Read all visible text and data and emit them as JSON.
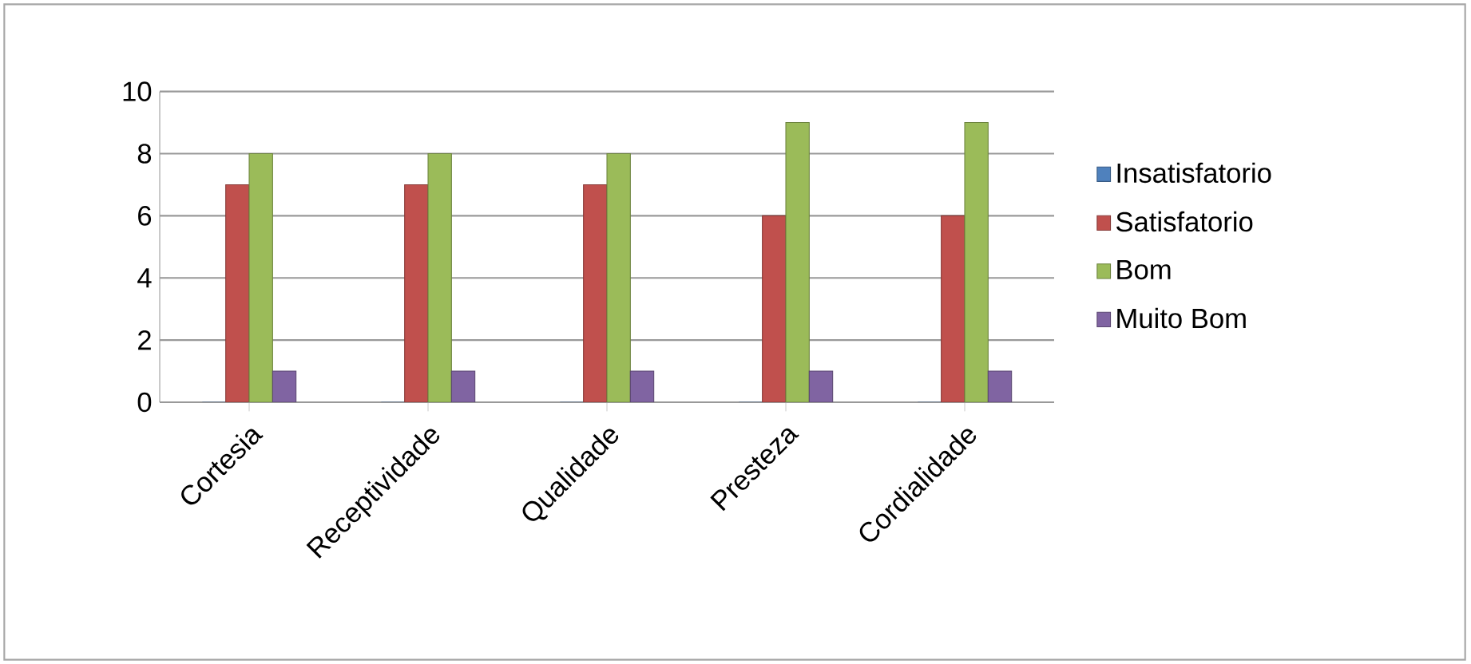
{
  "chart_data": {
    "type": "bar",
    "categories": [
      "Cortesia",
      "Receptividade",
      "Qualidade",
      "Presteza",
      "Cordialidade"
    ],
    "series": [
      {
        "name": "Insatisfatorio",
        "color": "#4f81bd",
        "values": [
          0,
          0,
          0,
          0,
          0
        ]
      },
      {
        "name": "Satisfatorio",
        "color": "#c0504d",
        "values": [
          7,
          7,
          7,
          6,
          6
        ]
      },
      {
        "name": "Bom",
        "color": "#9bbb59",
        "values": [
          8,
          8,
          8,
          9,
          9
        ]
      },
      {
        "name": "Muito Bom",
        "color": "#8064a2",
        "values": [
          1,
          1,
          1,
          1,
          1
        ]
      }
    ],
    "ylim": [
      0,
      10
    ],
    "yticks": [
      0,
      2,
      4,
      6,
      8,
      10
    ],
    "grid": "y",
    "legend": "right"
  }
}
